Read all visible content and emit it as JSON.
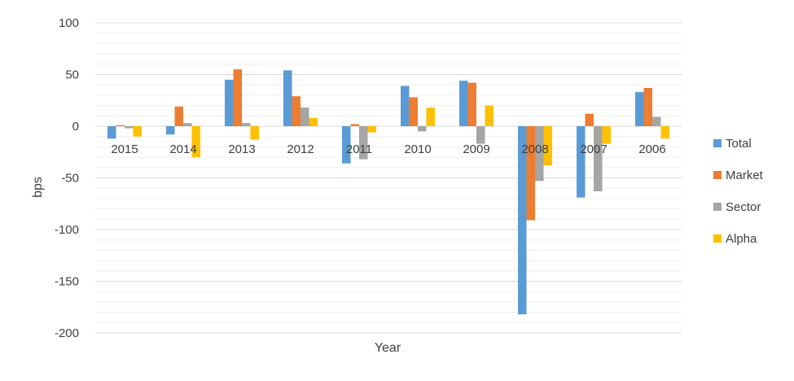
{
  "chart_data": {
    "type": "bar",
    "title": "",
    "xlabel": "Year",
    "ylabel": "bps",
    "ylim": [
      -200,
      100
    ],
    "yticks": [
      100,
      50,
      0,
      -50,
      -100,
      -150,
      -200
    ],
    "grid": true,
    "legend_position": "right",
    "categories": [
      "2015",
      "2014",
      "2013",
      "2012",
      "2011",
      "2010",
      "2009",
      "2008",
      "2007",
      "2006"
    ],
    "series": [
      {
        "name": "Total",
        "color": "#5B9BD5",
        "values": [
          -12,
          -8,
          45,
          54,
          -36,
          39,
          44,
          -182,
          -69,
          33
        ]
      },
      {
        "name": "Market",
        "color": "#ED7D31",
        "values": [
          1,
          19,
          55,
          29,
          2,
          28,
          42,
          -91,
          12,
          37
        ]
      },
      {
        "name": "Sector",
        "color": "#A5A5A5",
        "values": [
          -2,
          3,
          3,
          18,
          -32,
          -5,
          -17,
          -53,
          -63,
          9
        ]
      },
      {
        "name": "Alpha",
        "color": "#FFC000",
        "values": [
          -10,
          -30,
          -13,
          8,
          -6,
          18,
          20,
          -38,
          -17,
          -12
        ]
      }
    ]
  }
}
